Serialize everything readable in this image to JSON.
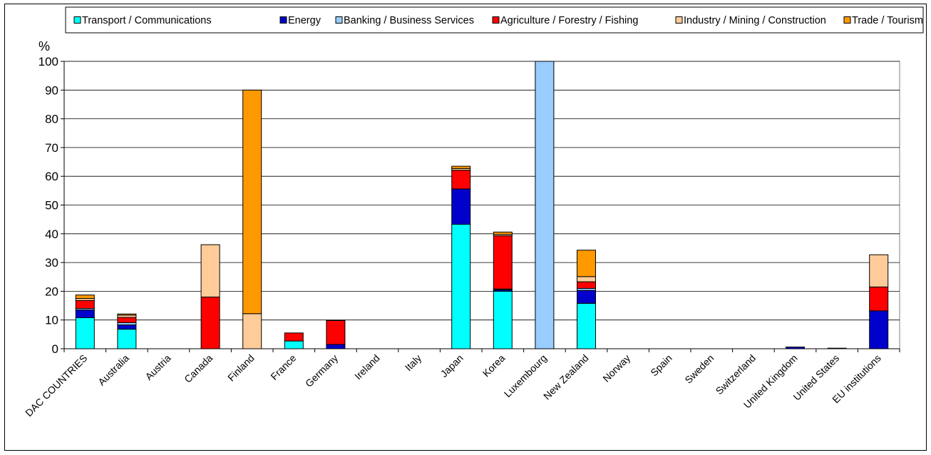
{
  "chart_data": {
    "type": "bar",
    "stacked": true,
    "ylabel": "%",
    "ylim": [
      0,
      100
    ],
    "yticks": [
      0,
      10,
      20,
      30,
      40,
      50,
      60,
      70,
      80,
      90,
      100
    ],
    "grid": true,
    "legend_position": "top",
    "categories": [
      "DAC COUNTRIES",
      "Australia",
      "Austria",
      "Canada",
      "Finland",
      "France",
      "Germany",
      "Ireland",
      "Italy",
      "Japan",
      "Korea",
      "Luxembourg",
      "New Zealand",
      "Norway",
      "Spain",
      "Sweden",
      "Switzerland",
      "United Kingdom",
      "United States",
      "EU institutions"
    ],
    "series": [
      {
        "name": "Transport / Communications",
        "color": "#00FFFF",
        "values": [
          10.8,
          6.8,
          0,
          0,
          0,
          2.7,
          0,
          0,
          0,
          43.3,
          20.0,
          0,
          15.8,
          0,
          0,
          0,
          0,
          0,
          0,
          0
        ]
      },
      {
        "name": "Energy",
        "color": "#0000CC",
        "values": [
          2.7,
          1.5,
          0,
          0,
          0,
          0,
          1.5,
          0,
          0,
          12.3,
          0.5,
          0,
          4.5,
          0,
          0,
          0,
          0,
          0.6,
          0.2,
          13.2
        ]
      },
      {
        "name": "Banking / Business Services",
        "color": "#99CCFF",
        "values": [
          0.5,
          0.8,
          0,
          0,
          0,
          0,
          0,
          0,
          0,
          0,
          0.3,
          100,
          0.7,
          0,
          0,
          0,
          0,
          0,
          0,
          0
        ]
      },
      {
        "name": "Agriculture / Forestry / Fishing",
        "color": "#FF0000",
        "values": [
          2.8,
          1.8,
          0,
          18.0,
          0,
          2.8,
          8.3,
          0,
          0,
          6.5,
          18.5,
          0,
          2.3,
          0,
          0,
          0,
          0,
          0,
          0,
          8.3
        ]
      },
      {
        "name": "Industry / Mining / Construction",
        "color": "#FFCC99",
        "values": [
          0.7,
          0.8,
          0,
          18.2,
          12.2,
          0,
          0,
          0,
          0,
          0.6,
          0.5,
          0,
          1.8,
          0,
          0,
          0,
          0,
          0,
          0,
          11.2
        ]
      },
      {
        "name": "Trade / Tourism",
        "color": "#FF9900",
        "values": [
          1.2,
          0.4,
          0,
          0,
          77.8,
          0,
          0,
          0,
          0,
          0.8,
          0.8,
          0,
          9.2,
          0,
          0,
          0,
          0,
          0,
          0,
          0
        ]
      }
    ]
  }
}
